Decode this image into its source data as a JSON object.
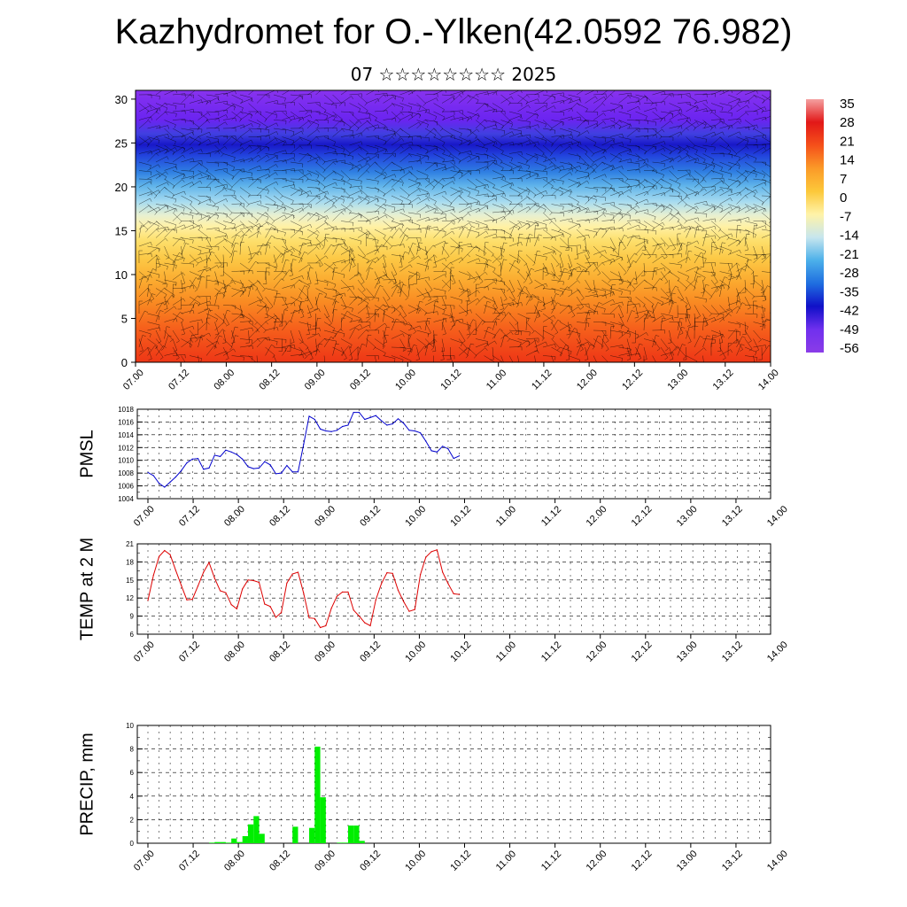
{
  "title": "Kazhydromet for O.-Ylken(42.0592 76.982)",
  "subtitle": "07 ☆☆☆☆☆☆☆☆ 2025",
  "chart_data": [
    {
      "type": "heatmap",
      "name": "cross-section",
      "ylim": [
        0,
        31
      ],
      "yticks": [
        0,
        5,
        10,
        15,
        20,
        25,
        30
      ],
      "xticks": [
        "07.00",
        "07.12",
        "08.00",
        "08.12",
        "09.00",
        "09.12",
        "10.00",
        "10.12",
        "11.00",
        "11.12",
        "12.00",
        "12.12",
        "13.00",
        "13.12",
        "14.00"
      ],
      "colorbar": {
        "labels": [
          "35",
          "28",
          "21",
          "14",
          "7",
          "0",
          "-7",
          "-14",
          "-21",
          "-28",
          "-35",
          "-42",
          "-49",
          "-56"
        ],
        "stops": [
          "#f4a0a0",
          "#e21818",
          "#f5501a",
          "#fb9a28",
          "#fcc83a",
          "#fff3a8",
          "#c7e6ee",
          "#4cb0ea",
          "#1f6ee0",
          "#1010c8",
          "#7030ee",
          "#8a3ce8"
        ]
      }
    },
    {
      "type": "line",
      "ylabel": "PMSL",
      "ylim": [
        1004,
        1018
      ],
      "yticks": [
        1004,
        1006,
        1008,
        1010,
        1012,
        1014,
        1016,
        1018
      ],
      "xticks": [
        "07.00",
        "07.12",
        "08.00",
        "08.12",
        "09.00",
        "09.12",
        "10.00",
        "10.12",
        "11.00",
        "11.12",
        "12.00",
        "12.12",
        "13.00",
        "13.12",
        "14.00"
      ],
      "x_start": 0.0,
      "x_step": 0.125,
      "values": [
        1008.1,
        1007.6,
        1006.4,
        1005.8,
        1006.6,
        1007.4,
        1008.4,
        1009.6,
        1010.2,
        1010.3,
        1008.6,
        1008.8,
        1010.8,
        1010.6,
        1011.6,
        1011.3,
        1010.9,
        1010.2,
        1009.0,
        1008.7,
        1008.8,
        1009.8,
        1009.3,
        1007.9,
        1008.0,
        1009.2,
        1008.2,
        1008.2,
        1012.5,
        1016.9,
        1016.4,
        1014.9,
        1014.6,
        1014.5,
        1014.7,
        1015.3,
        1015.5,
        1017.5,
        1017.5,
        1016.4,
        1016.7,
        1017.0,
        1016.2,
        1015.5,
        1015.7,
        1016.5,
        1015.8,
        1014.7,
        1014.6,
        1014.3,
        1013.0,
        1011.5,
        1011.3,
        1012.2,
        1011.8,
        1010.3,
        1010.7
      ],
      "color": "#0000cc"
    },
    {
      "type": "line",
      "ylabel": "TEMP at 2 M",
      "ylim": [
        6,
        21
      ],
      "yticks": [
        6,
        9,
        12,
        15,
        18,
        21
      ],
      "xticks": [
        "07.00",
        "07.12",
        "08.00",
        "08.12",
        "09.00",
        "09.12",
        "10.00",
        "10.12",
        "11.00",
        "11.12",
        "12.00",
        "12.12",
        "13.00",
        "13.12",
        "14.00"
      ],
      "x_start": 0.0,
      "x_step": 0.125,
      "values": [
        11.6,
        15.8,
        18.9,
        19.9,
        19.2,
        16.6,
        14.1,
        11.7,
        11.8,
        14.0,
        16.3,
        17.9,
        15.3,
        13.2,
        12.9,
        10.9,
        10.2,
        13.5,
        15.0,
        14.9,
        14.6,
        11.0,
        10.6,
        8.8,
        9.6,
        14.5,
        16.0,
        16.3,
        12.8,
        8.7,
        8.6,
        7.1,
        7.4,
        10.3,
        12.3,
        13.0,
        13.0,
        10.0,
        9.0,
        7.9,
        7.4,
        11.7,
        14.4,
        16.2,
        16.1,
        13.3,
        11.4,
        9.8,
        10.1,
        15.9,
        18.8,
        19.7,
        20.0,
        16.3,
        14.4,
        12.7,
        12.6
      ],
      "color": "#dd0000"
    },
    {
      "type": "bar",
      "ylabel": "PRECIP, mm",
      "ylim": [
        0,
        10
      ],
      "yticks": [
        0,
        2,
        4,
        6,
        8,
        10
      ],
      "xticks": [
        "07.00",
        "07.12",
        "08.00",
        "08.12",
        "09.00",
        "09.12",
        "10.00",
        "10.12",
        "11.00",
        "11.12",
        "12.00",
        "12.12",
        "13.00",
        "13.12",
        "14.00"
      ],
      "x_start": 0.0,
      "x_step": 0.125,
      "values": [
        0,
        0,
        0,
        0,
        0,
        0,
        0,
        0,
        0,
        0,
        0,
        0.05,
        0.1,
        0.1,
        0.05,
        0.4,
        0.1,
        0.6,
        1.6,
        2.3,
        0.8,
        0,
        0,
        0,
        0,
        0,
        1.4,
        0,
        0,
        1.3,
        8.2,
        3.9,
        0,
        0,
        0.05,
        0.05,
        1.5,
        1.5,
        0.2,
        0,
        0,
        0,
        0,
        0,
        0,
        0,
        0,
        0,
        0,
        0,
        0,
        0,
        0,
        0,
        0,
        0,
        0
      ],
      "color": "#00ee00"
    }
  ]
}
